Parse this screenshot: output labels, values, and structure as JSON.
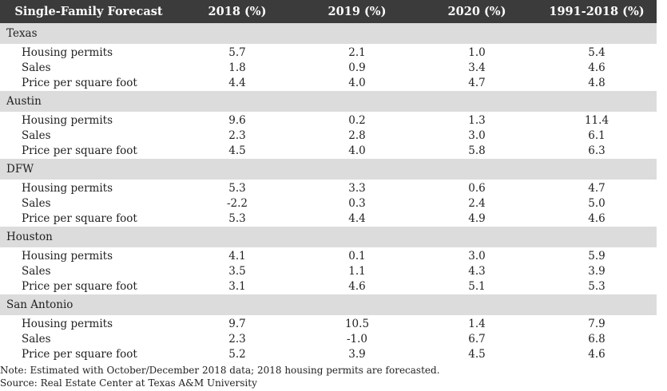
{
  "chart_data": {
    "type": "table",
    "columns": [
      "Single-Family Forecast",
      "2018 (%)",
      "2019 (%)",
      "2020 (%)",
      "1991-2018 (%)"
    ],
    "groups": [
      {
        "region": "Texas",
        "rows": [
          {
            "label": "Housing permits",
            "values": [
              "5.7",
              "2.1",
              "1.0",
              "5.4"
            ]
          },
          {
            "label": "Sales",
            "values": [
              "1.8",
              "0.9",
              "3.4",
              "4.6"
            ]
          },
          {
            "label": "Price per square foot",
            "values": [
              "4.4",
              "4.0",
              "4.7",
              "4.8"
            ]
          }
        ]
      },
      {
        "region": "Austin",
        "rows": [
          {
            "label": "Housing permits",
            "values": [
              "9.6",
              "0.2",
              "1.3",
              "11.4"
            ]
          },
          {
            "label": "Sales",
            "values": [
              "2.3",
              "2.8",
              "3.0",
              "6.1"
            ]
          },
          {
            "label": "Price per square foot",
            "values": [
              "4.5",
              "4.0",
              "5.8",
              "6.3"
            ]
          }
        ]
      },
      {
        "region": "DFW",
        "rows": [
          {
            "label": "Housing permits",
            "values": [
              "5.3",
              "3.3",
              "0.6",
              "4.7"
            ]
          },
          {
            "label": "Sales",
            "values": [
              "-2.2",
              "0.3",
              "2.4",
              "5.0"
            ]
          },
          {
            "label": "Price per square foot",
            "values": [
              "5.3",
              "4.4",
              "4.9",
              "4.6"
            ]
          }
        ]
      },
      {
        "region": "Houston",
        "rows": [
          {
            "label": "Housing permits",
            "values": [
              "4.1",
              "0.1",
              "3.0",
              "5.9"
            ]
          },
          {
            "label": "Sales",
            "values": [
              "3.5",
              "1.1",
              "4.3",
              "3.9"
            ]
          },
          {
            "label": "Price per square foot",
            "values": [
              "3.1",
              "4.6",
              "5.1",
              "5.3"
            ]
          }
        ]
      },
      {
        "region": "San Antonio",
        "rows": [
          {
            "label": "Housing permits",
            "values": [
              "9.7",
              "10.5",
              "1.4",
              "7.9"
            ]
          },
          {
            "label": "Sales",
            "values": [
              "2.3",
              "-1.0",
              "6.7",
              "6.8"
            ]
          },
          {
            "label": "Price per square foot",
            "values": [
              "5.2",
              "3.9",
              "4.5",
              "4.6"
            ]
          }
        ]
      }
    ],
    "notes": [
      "Note: Estimated with October/December 2018 data; 2018 housing permits are forecasted.",
      "Source: Real Estate Center at Texas A&M University"
    ],
    "colors": {
      "header_bg": "#3b3b3b",
      "header_text": "#ffffff",
      "region_bg": "#dcdcdc"
    }
  }
}
